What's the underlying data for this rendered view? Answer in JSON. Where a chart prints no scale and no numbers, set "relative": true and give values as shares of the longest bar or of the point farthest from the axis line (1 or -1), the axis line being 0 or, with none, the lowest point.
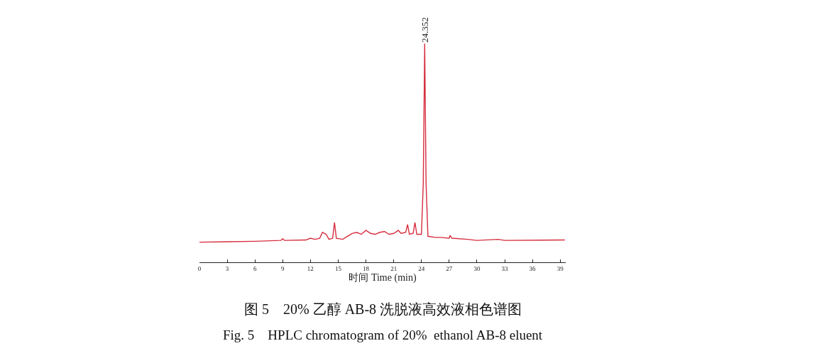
{
  "chart_data": {
    "type": "line",
    "title": "图 5　20% 乙醇 AB-8 洗脱液高效液相色谱图",
    "subtitle": "Fig. 5　HPLC chromatogram of 20%  ethanol AB-8 eluent",
    "xlabel": "时间 Time (min)",
    "relative": true,
    "xlim": [
      0,
      39.6
    ],
    "xticks": [
      0,
      3,
      6,
      9,
      12,
      15,
      18,
      21,
      24,
      27,
      30,
      33,
      36,
      39
    ],
    "marker": "none",
    "line_style": "solid",
    "annotations": [
      {
        "text": "24.352",
        "x": 24.352,
        "y": 1
      }
    ],
    "series": [
      {
        "color": "#d62d3e",
        "x": [
          0,
          3,
          6,
          8.8,
          9,
          9.2,
          11.5,
          12,
          12.5,
          13,
          13.3,
          13.7,
          14,
          14.4,
          14.6,
          14.8,
          15.5,
          16,
          16.5,
          17,
          17.5,
          18,
          18.5,
          19,
          19.5,
          20,
          20.5,
          21,
          21.5,
          21.8,
          22.3,
          22.5,
          22.7,
          23.1,
          23.3,
          23.5,
          24,
          24.2,
          24.352,
          24.5,
          24.7,
          25.5,
          26,
          27,
          27.1,
          27.3,
          29,
          30,
          32.3,
          33,
          39.5
        ],
        "values": [
          0.092,
          0.094,
          0.096,
          0.1,
          0.108,
          0.1,
          0.102,
          0.11,
          0.105,
          0.11,
          0.137,
          0.128,
          0.105,
          0.11,
          0.182,
          0.11,
          0.105,
          0.119,
          0.132,
          0.137,
          0.128,
          0.146,
          0.132,
          0.128,
          0.137,
          0.141,
          0.128,
          0.132,
          0.146,
          0.132,
          0.137,
          0.173,
          0.128,
          0.132,
          0.182,
          0.128,
          0.128,
          0.364,
          1,
          0.364,
          0.119,
          0.114,
          0.114,
          0.11,
          0.123,
          0.11,
          0.105,
          0.1,
          0.105,
          0.1,
          0.102
        ]
      }
    ]
  }
}
